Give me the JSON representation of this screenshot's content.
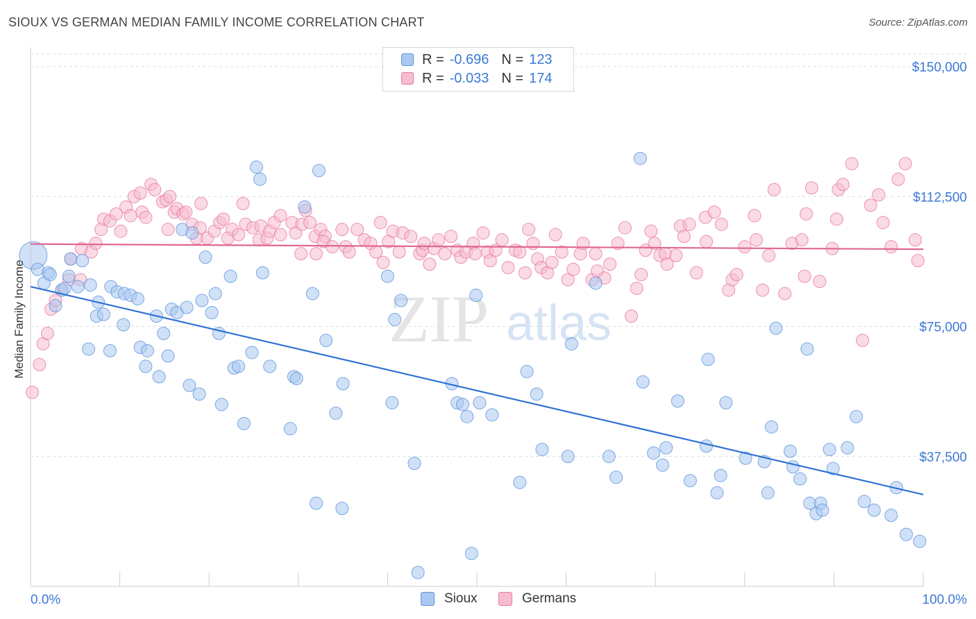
{
  "header": {
    "title": "SIOUX VS GERMAN MEDIAN FAMILY INCOME CORRELATION CHART",
    "source": "Source: ZipAtlas.com"
  },
  "legend": {
    "rows": [
      {
        "r_label": "R =",
        "r_value": "-0.696",
        "n_label": "N =",
        "n_value": "123"
      },
      {
        "r_label": "R =",
        "r_value": "-0.033",
        "n_label": "N =",
        "n_value": "174"
      }
    ]
  },
  "bottom_legend": {
    "items": [
      "Sioux",
      "Germans"
    ]
  },
  "watermark": {
    "zip": "ZIP",
    "atlas": "atlas"
  },
  "colors": {
    "sioux_fill": "#aac8f0",
    "sioux_stroke": "#5b93dc",
    "sioux_line": "#2f72d4",
    "german_fill": "#f6bcd0",
    "german_stroke": "#e8789c",
    "german_line": "#e06690",
    "tick_text": "#3b78d8",
    "grid": "#dcdcdc"
  },
  "chart_data": {
    "type": "scatter",
    "title": "SIOUX VS GERMAN MEDIAN FAMILY INCOME CORRELATION CHART",
    "xlabel": "",
    "ylabel": "Median Family Income",
    "xlim": [
      0,
      100
    ],
    "ylim": [
      0,
      153000
    ],
    "x_tick_labels": [
      "0.0%",
      "100.0%"
    ],
    "y_ticks": [
      37500,
      75000,
      112500,
      150000
    ],
    "y_tick_labels": [
      "$37,500",
      "$75,000",
      "$112,500",
      "$150,000"
    ],
    "grid": true,
    "legend_position": "top-center",
    "series": [
      {
        "name": "Sioux",
        "R": -0.696,
        "N": 123,
        "trend": {
          "x": [
            0,
            100
          ],
          "y": [
            86500,
            26500
          ]
        },
        "points": [
          [
            0.3,
            95500,
            "big"
          ],
          [
            0.8,
            91500
          ],
          [
            1.5,
            87500
          ],
          [
            2.0,
            90500
          ],
          [
            2.2,
            90000
          ],
          [
            2.8,
            81000
          ],
          [
            3.5,
            85500
          ],
          [
            3.8,
            86000
          ],
          [
            4.3,
            89500
          ],
          [
            4.5,
            94500
          ],
          [
            5.3,
            86500
          ],
          [
            5.8,
            94000
          ],
          [
            6.5,
            68500
          ],
          [
            6.7,
            87000
          ],
          [
            7.4,
            78000
          ],
          [
            7.6,
            82000
          ],
          [
            8.2,
            78500
          ],
          [
            8.9,
            68000
          ],
          [
            9.0,
            86500
          ],
          [
            9.7,
            85000
          ],
          [
            10.4,
            75500
          ],
          [
            10.5,
            84500
          ],
          [
            11.2,
            84000
          ],
          [
            12.0,
            83000
          ],
          [
            12.3,
            69000
          ],
          [
            12.9,
            63500
          ],
          [
            13.1,
            68000
          ],
          [
            14.1,
            78000
          ],
          [
            14.4,
            60500
          ],
          [
            14.9,
            73000
          ],
          [
            15.4,
            66500
          ],
          [
            15.8,
            80000
          ],
          [
            16.4,
            79000
          ],
          [
            17.0,
            103000
          ],
          [
            17.5,
            80500
          ],
          [
            17.8,
            58000
          ],
          [
            18.1,
            102000
          ],
          [
            18.9,
            55500
          ],
          [
            19.2,
            82500
          ],
          [
            19.6,
            95000
          ],
          [
            20.3,
            79000
          ],
          [
            20.7,
            84500
          ],
          [
            21.1,
            73000
          ],
          [
            21.4,
            52500
          ],
          [
            22.4,
            89500
          ],
          [
            22.8,
            63000
          ],
          [
            23.3,
            63500
          ],
          [
            23.9,
            47000
          ],
          [
            24.8,
            67500
          ],
          [
            25.3,
            121000
          ],
          [
            25.7,
            117500
          ],
          [
            26.0,
            90500
          ],
          [
            26.8,
            63500
          ],
          [
            29.1,
            45500
          ],
          [
            29.5,
            60500
          ],
          [
            29.8,
            60000
          ],
          [
            30.7,
            109500
          ],
          [
            31.6,
            84500
          ],
          [
            32.0,
            24000
          ],
          [
            32.3,
            120000
          ],
          [
            33.1,
            71000
          ],
          [
            34.2,
            50000
          ],
          [
            35.0,
            58500
          ],
          [
            34.9,
            22500
          ],
          [
            40.0,
            89500
          ],
          [
            40.5,
            53000
          ],
          [
            40.8,
            77000
          ],
          [
            41.5,
            82500
          ],
          [
            43.0,
            35500
          ],
          [
            43.4,
            4000
          ],
          [
            47.2,
            58500
          ],
          [
            47.8,
            53000
          ],
          [
            48.4,
            52500
          ],
          [
            48.9,
            49000
          ],
          [
            49.9,
            84000
          ],
          [
            49.4,
            9500
          ],
          [
            50.3,
            53000
          ],
          [
            51.7,
            49500
          ],
          [
            54.8,
            30000
          ],
          [
            55.6,
            62000
          ],
          [
            56.7,
            55500
          ],
          [
            57.3,
            39500
          ],
          [
            60.2,
            37500
          ],
          [
            60.6,
            70000
          ],
          [
            63.3,
            87500
          ],
          [
            64.8,
            37500
          ],
          [
            65.6,
            31500
          ],
          [
            68.3,
            123500
          ],
          [
            68.6,
            59000
          ],
          [
            69.8,
            38500
          ],
          [
            70.8,
            35000
          ],
          [
            71.2,
            40000
          ],
          [
            72.5,
            53500
          ],
          [
            73.9,
            30500
          ],
          [
            75.9,
            65500
          ],
          [
            75.7,
            40500
          ],
          [
            76.9,
            27000
          ],
          [
            77.3,
            32000
          ],
          [
            77.9,
            53000
          ],
          [
            80.1,
            37000
          ],
          [
            82.2,
            36000
          ],
          [
            83.0,
            46000
          ],
          [
            83.5,
            74500
          ],
          [
            85.1,
            39000
          ],
          [
            82.6,
            27000
          ],
          [
            85.4,
            34500
          ],
          [
            86.2,
            31000
          ],
          [
            87.0,
            68500
          ],
          [
            87.3,
            24000
          ],
          [
            88.0,
            21000
          ],
          [
            88.5,
            24000
          ],
          [
            88.7,
            22000
          ],
          [
            89.5,
            39500
          ],
          [
            89.9,
            34000
          ],
          [
            91.5,
            40000
          ],
          [
            92.5,
            49000
          ],
          [
            93.4,
            24500
          ],
          [
            94.5,
            22000
          ],
          [
            96.4,
            20500
          ],
          [
            97.0,
            28500
          ],
          [
            98.1,
            15000
          ],
          [
            99.6,
            13000
          ]
        ]
      },
      {
        "name": "Germans",
        "R": -0.033,
        "N": 174,
        "trend": {
          "x": [
            0,
            100
          ],
          "y": [
            98800,
            97300
          ]
        },
        "points": [
          [
            0.2,
            56000
          ],
          [
            1.0,
            64000
          ],
          [
            1.4,
            70000
          ],
          [
            1.9,
            73000
          ],
          [
            2.3,
            80000
          ],
          [
            2.8,
            82500
          ],
          [
            3.5,
            85500
          ],
          [
            4.3,
            88500
          ],
          [
            4.5,
            94500
          ],
          [
            5.6,
            88500
          ],
          [
            5.7,
            97500
          ],
          [
            6.8,
            96500
          ],
          [
            7.3,
            99000
          ],
          [
            7.9,
            103000
          ],
          [
            8.2,
            106000
          ],
          [
            8.9,
            105500
          ],
          [
            9.6,
            107500
          ],
          [
            10.1,
            102500
          ],
          [
            10.7,
            109500
          ],
          [
            11.2,
            107000
          ],
          [
            11.6,
            112500
          ],
          [
            12.5,
            108000
          ],
          [
            12.9,
            106500
          ],
          [
            12.3,
            113500
          ],
          [
            13.5,
            116000
          ],
          [
            13.9,
            114500
          ],
          [
            14.8,
            111000
          ],
          [
            15.2,
            111500
          ],
          [
            15.6,
            112500
          ],
          [
            15.4,
            103000
          ],
          [
            16.1,
            108000
          ],
          [
            16.4,
            109000
          ],
          [
            17.1,
            107500
          ],
          [
            17.4,
            108000
          ],
          [
            18.1,
            104500
          ],
          [
            18.6,
            100500
          ],
          [
            19.0,
            103500
          ],
          [
            19.1,
            110500
          ],
          [
            19.8,
            100500
          ],
          [
            20.6,
            102500
          ],
          [
            21.2,
            105000
          ],
          [
            21.6,
            106000
          ],
          [
            22.1,
            100500
          ],
          [
            22.6,
            103000
          ],
          [
            23.3,
            101500
          ],
          [
            23.8,
            110500
          ],
          [
            24.1,
            104500
          ],
          [
            24.9,
            103500
          ],
          [
            25.8,
            104000
          ],
          [
            25.6,
            100000
          ],
          [
            26.5,
            100500
          ],
          [
            26.8,
            102500
          ],
          [
            27.3,
            105000
          ],
          [
            28.0,
            101500
          ],
          [
            28.0,
            107000
          ],
          [
            29.3,
            105000
          ],
          [
            29.7,
            102000
          ],
          [
            30.3,
            96000
          ],
          [
            30.4,
            104500
          ],
          [
            30.8,
            108500
          ],
          [
            31.3,
            105000
          ],
          [
            31.9,
            101000
          ],
          [
            32.5,
            103000
          ],
          [
            33.0,
            101000
          ],
          [
            32.0,
            96000
          ],
          [
            32.8,
            99500
          ],
          [
            33.8,
            98000
          ],
          [
            34.9,
            103000
          ],
          [
            35.3,
            98000
          ],
          [
            35.7,
            96500
          ],
          [
            36.6,
            103000
          ],
          [
            37.4,
            100000
          ],
          [
            38.1,
            99000
          ],
          [
            38.7,
            96500
          ],
          [
            39.2,
            105000
          ],
          [
            39.5,
            93500
          ],
          [
            40.1,
            99500
          ],
          [
            40.6,
            102500
          ],
          [
            41.3,
            96500
          ],
          [
            41.7,
            102000
          ],
          [
            42.6,
            101000
          ],
          [
            43.6,
            96000
          ],
          [
            43.9,
            97000
          ],
          [
            44.1,
            99000
          ],
          [
            44.7,
            93000
          ],
          [
            45.2,
            97500
          ],
          [
            45.7,
            100000
          ],
          [
            46.4,
            96000
          ],
          [
            47.1,
            101000
          ],
          [
            47.8,
            97000
          ],
          [
            48.2,
            95000
          ],
          [
            48.8,
            96500
          ],
          [
            49.6,
            99000
          ],
          [
            49.8,
            96000
          ],
          [
            50.7,
            102000
          ],
          [
            51.2,
            96500
          ],
          [
            51.5,
            94000
          ],
          [
            52.1,
            97000
          ],
          [
            52.8,
            100000
          ],
          [
            53.5,
            92000
          ],
          [
            54.3,
            97000
          ],
          [
            54.8,
            96500
          ],
          [
            55.4,
            90500
          ],
          [
            56.3,
            99000
          ],
          [
            55.8,
            103000
          ],
          [
            56.8,
            94500
          ],
          [
            57.2,
            92000
          ],
          [
            57.9,
            90500
          ],
          [
            58.4,
            93500
          ],
          [
            58.8,
            101500
          ],
          [
            59.5,
            96500
          ],
          [
            60.2,
            88500
          ],
          [
            60.8,
            91500
          ],
          [
            61.6,
            96000
          ],
          [
            61.9,
            99000
          ],
          [
            62.9,
            88500
          ],
          [
            63.5,
            91000
          ],
          [
            63.3,
            96000
          ],
          [
            64.3,
            89000
          ],
          [
            64.9,
            93000
          ],
          [
            65.8,
            99000
          ],
          [
            66.6,
            103500
          ],
          [
            67.3,
            78000
          ],
          [
            67.9,
            86000
          ],
          [
            68.4,
            90000
          ],
          [
            68.9,
            97000
          ],
          [
            69.5,
            102500
          ],
          [
            69.9,
            99000
          ],
          [
            70.5,
            95500
          ],
          [
            71.1,
            96000
          ],
          [
            71.3,
            93000
          ],
          [
            72.3,
            95500
          ],
          [
            72.8,
            104000
          ],
          [
            73.2,
            101000
          ],
          [
            73.8,
            104500
          ],
          [
            74.6,
            90500
          ],
          [
            75.6,
            106500
          ],
          [
            75.7,
            99500
          ],
          [
            76.6,
            108000
          ],
          [
            77.4,
            104500
          ],
          [
            78.2,
            85500
          ],
          [
            78.6,
            88500
          ],
          [
            79.1,
            90000
          ],
          [
            80.0,
            98000
          ],
          [
            81.3,
            100000
          ],
          [
            81.1,
            107000
          ],
          [
            82.0,
            85500
          ],
          [
            82.7,
            95500
          ],
          [
            83.3,
            114500
          ],
          [
            84.5,
            84500
          ],
          [
            85.3,
            99000
          ],
          [
            86.4,
            100000
          ],
          [
            86.7,
            89500
          ],
          [
            86.9,
            107500
          ],
          [
            87.5,
            115000
          ],
          [
            88.4,
            88000
          ],
          [
            89.8,
            97500
          ],
          [
            90.3,
            106000
          ],
          [
            90.5,
            114500
          ],
          [
            91.0,
            116000
          ],
          [
            92.0,
            122000
          ],
          [
            93.2,
            71000
          ],
          [
            94.1,
            110000
          ],
          [
            95.0,
            113000
          ],
          [
            95.5,
            105000
          ],
          [
            96.4,
            98000
          ],
          [
            97.2,
            117500
          ],
          [
            98.0,
            122000
          ],
          [
            99.1,
            100000
          ],
          [
            99.4,
            94000
          ]
        ]
      }
    ]
  }
}
